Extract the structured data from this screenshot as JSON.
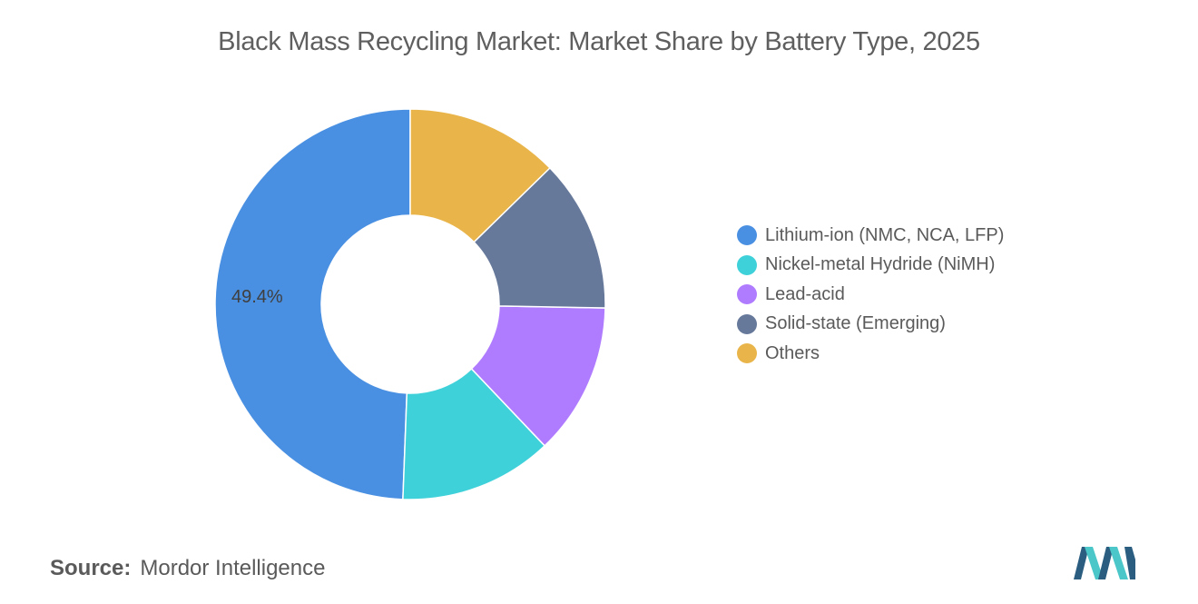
{
  "chart_data": {
    "type": "pie",
    "title": "Black Mass Recycling Market: Market Share by Battery Type, 2025",
    "donut": true,
    "categories": [
      "Lithium-ion (NMC, NCA, LFP)",
      "Nickel-metal Hydride (NiMH)",
      "Lead-acid",
      "Solid-state (Emerging)",
      "Others"
    ],
    "values": [
      49.4,
      12.7,
      12.6,
      12.6,
      12.7
    ],
    "data_labels": [
      "49.4%",
      "",
      "",
      "",
      ""
    ],
    "colors": [
      "#4a90e2",
      "#3fd1d9",
      "#b07cff",
      "#67799b",
      "#e9b54a"
    ],
    "start": "12 o'clock",
    "direction": "counterclockwise",
    "legend_position": "right"
  },
  "source": {
    "label": "Source:",
    "text": "Mordor Intelligence"
  },
  "logo": {
    "icon": "mordor-intelligence-logo",
    "colors": [
      "#2a5d80",
      "#4cc7c9"
    ]
  }
}
